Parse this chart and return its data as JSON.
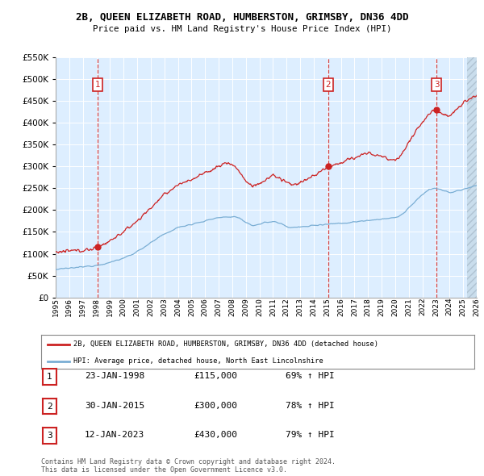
{
  "title": "2B, QUEEN ELIZABETH ROAD, HUMBERSTON, GRIMSBY, DN36 4DD",
  "subtitle": "Price paid vs. HM Land Registry's House Price Index (HPI)",
  "ylim": [
    0,
    550000
  ],
  "yticks": [
    0,
    50000,
    100000,
    150000,
    200000,
    250000,
    300000,
    350000,
    400000,
    450000,
    500000,
    550000
  ],
  "xmin_year": 1995,
  "xmax_year": 2026,
  "xtick_years": [
    1995,
    1996,
    1997,
    1998,
    1999,
    2000,
    2001,
    2002,
    2003,
    2004,
    2005,
    2006,
    2007,
    2008,
    2009,
    2010,
    2011,
    2012,
    2013,
    2014,
    2015,
    2016,
    2017,
    2018,
    2019,
    2020,
    2021,
    2022,
    2023,
    2024,
    2025,
    2026
  ],
  "hpi_color": "#7aaed4",
  "price_color": "#cc2222",
  "bg_color": "#ddeeff",
  "grid_color": "#ffffff",
  "sale_points": [
    {
      "year": 1998.07,
      "price": 115000,
      "label": "1"
    },
    {
      "year": 2015.07,
      "price": 300000,
      "label": "2"
    },
    {
      "year": 2023.04,
      "price": 430000,
      "label": "3"
    }
  ],
  "legend_address": "2B, QUEEN ELIZABETH ROAD, HUMBERSTON, GRIMSBY, DN36 4DD (detached house)",
  "legend_hpi": "HPI: Average price, detached house, North East Lincolnshire",
  "table_rows": [
    [
      "1",
      "23-JAN-1998",
      "£115,000",
      "69% ↑ HPI"
    ],
    [
      "2",
      "30-JAN-2015",
      "£300,000",
      "78% ↑ HPI"
    ],
    [
      "3",
      "12-JAN-2023",
      "£430,000",
      "79% ↑ HPI"
    ]
  ],
  "footnote": "Contains HM Land Registry data © Crown copyright and database right 2024.\nThis data is licensed under the Open Government Licence v3.0."
}
